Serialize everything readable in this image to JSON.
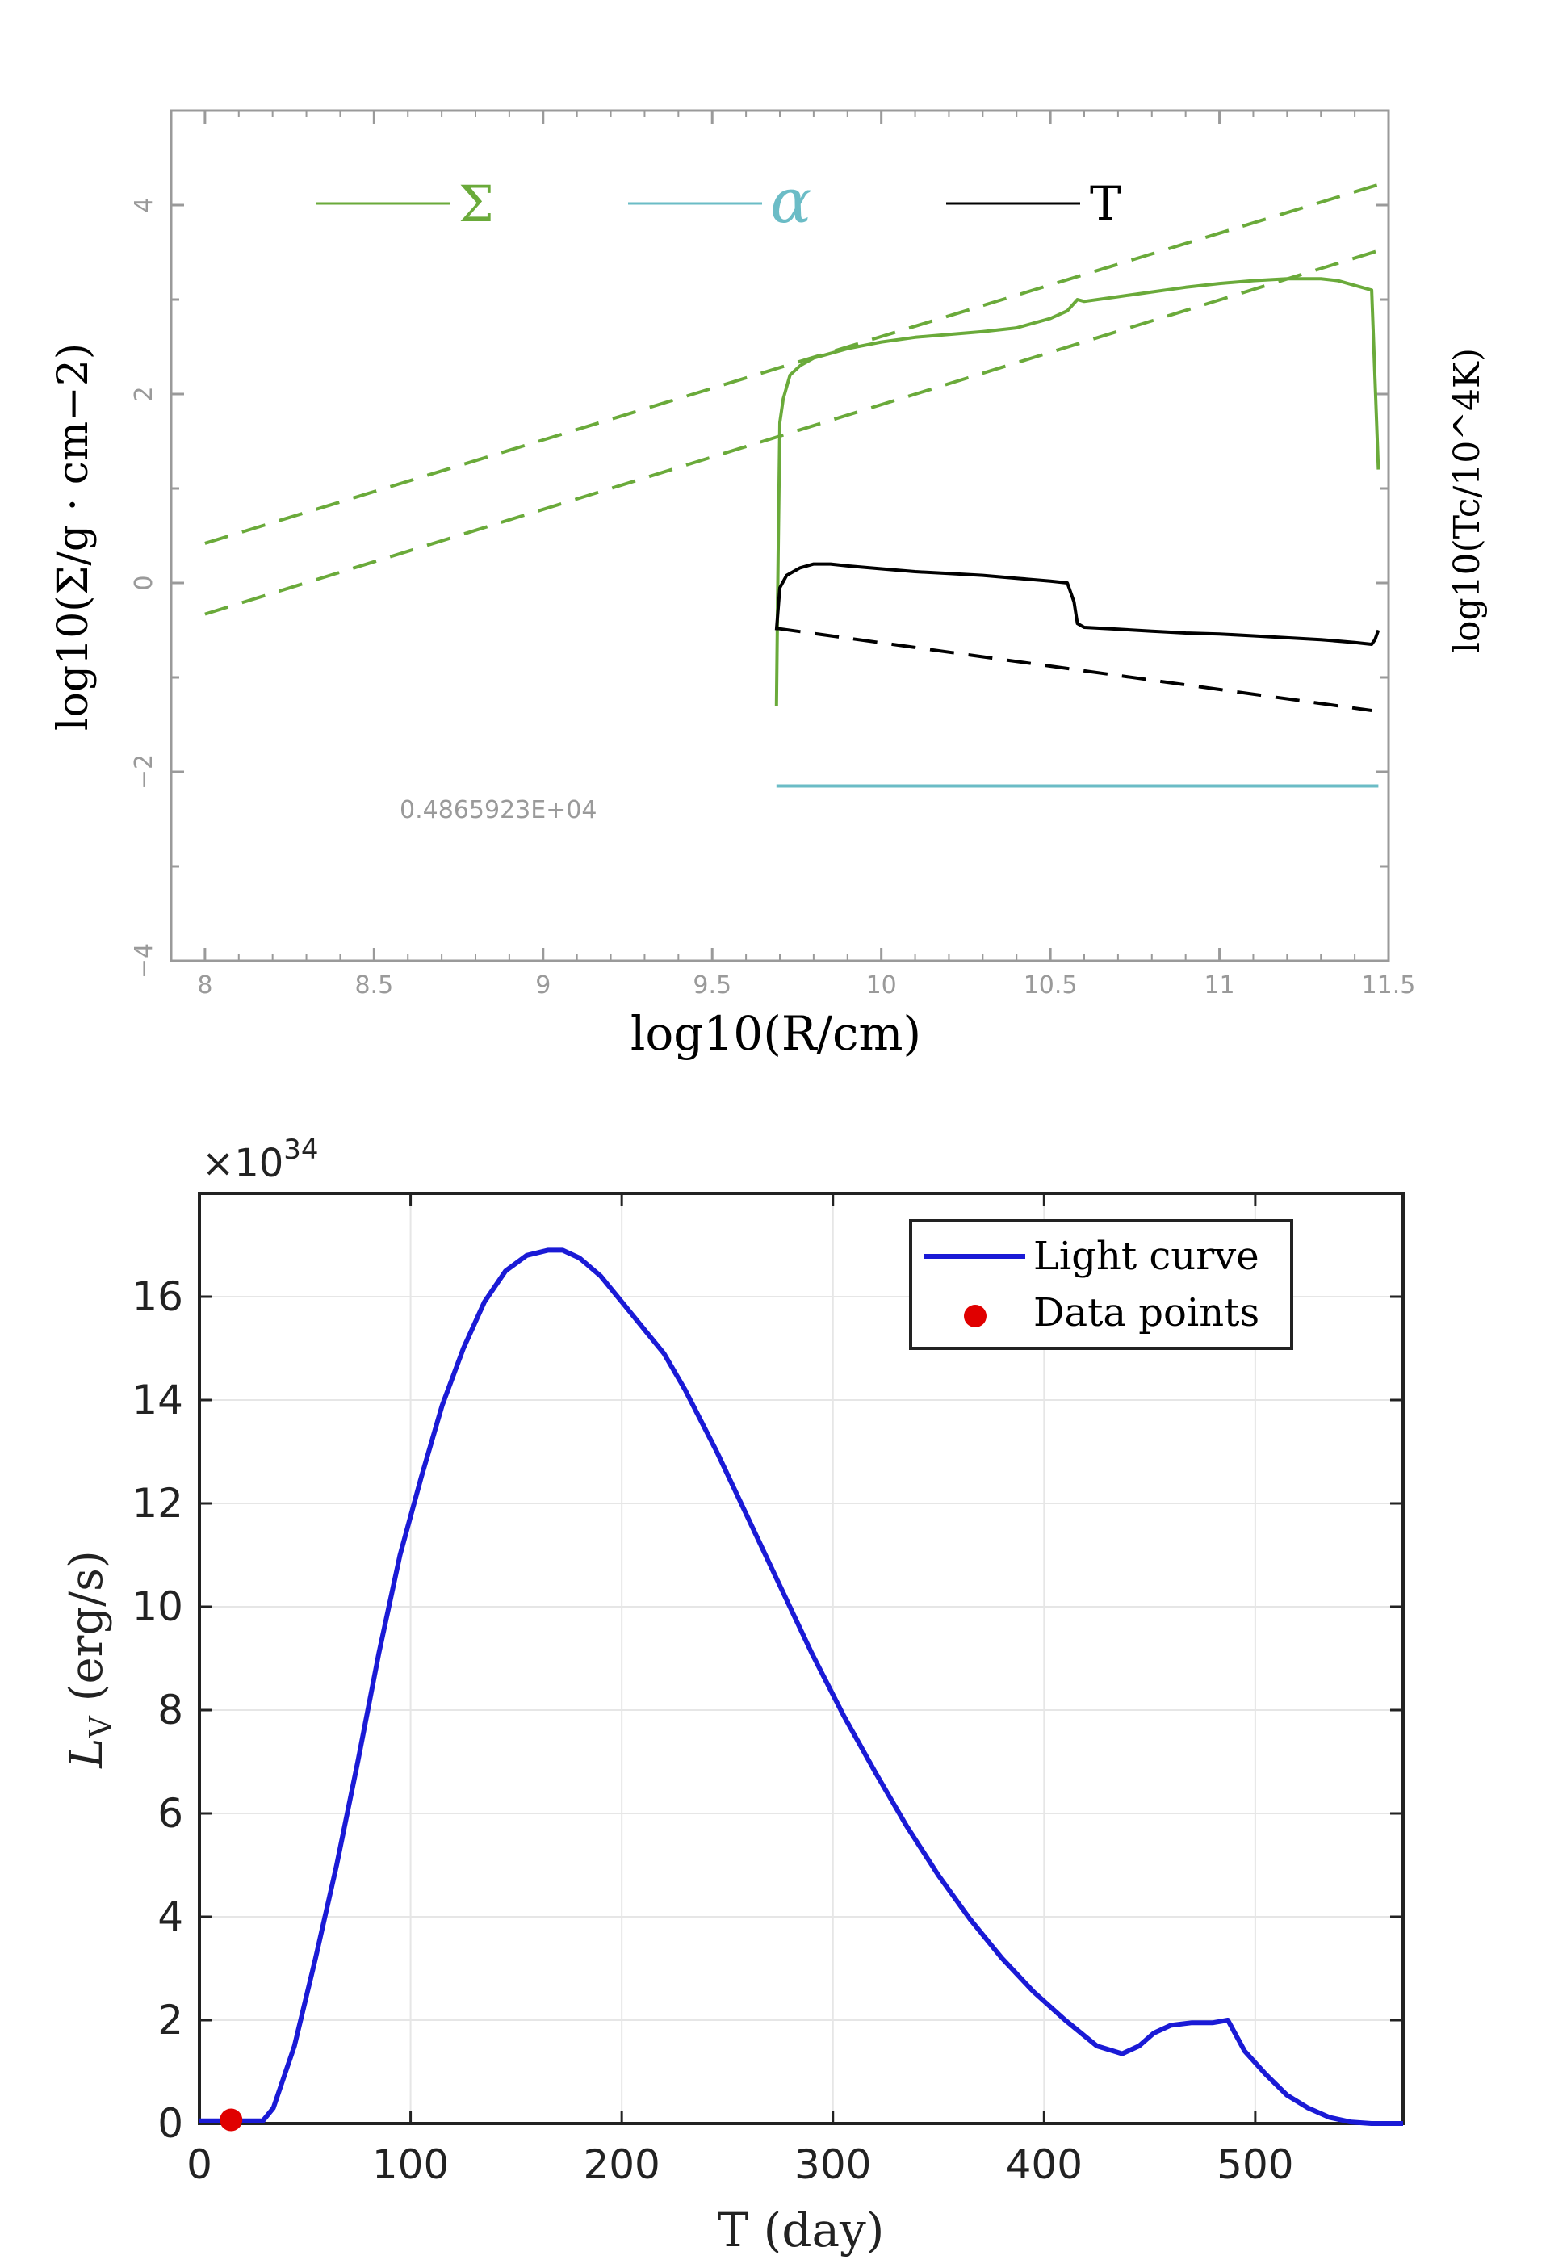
{
  "chart_data": [
    {
      "type": "line",
      "title": "",
      "xlabel": "log10(R/cm)",
      "ylabel_left": "log10(Σ/g · cm−2)",
      "ylabel_right": "log10(Tc/10^4K)",
      "xlim": [
        7.9,
        11.5
      ],
      "ylim": [
        -4,
        5
      ],
      "x_ticks": [
        8,
        8.5,
        9,
        9.5,
        10,
        10.5,
        11,
        11.5
      ],
      "x_tick_labels": [
        "8",
        "8.5",
        "9",
        "9.5",
        "10",
        "10.5",
        "11",
        "11.5"
      ],
      "y_ticks": [
        -4,
        -2,
        0,
        2,
        4
      ],
      "y_tick_labels": [
        "−4",
        "−2",
        "0",
        "2",
        "4"
      ],
      "annotation": "0.4865923E+04",
      "legend": [
        {
          "label": "Σ",
          "color": "#6aaa3a"
        },
        {
          "label": "α",
          "color": "#6bbcc6"
        },
        {
          "label": "T",
          "color": "#000000"
        }
      ],
      "series": [
        {
          "name": "Σ",
          "color": "#6aaa3a",
          "style": "solid",
          "x": [
            9.69,
            9.695,
            9.7,
            9.71,
            9.73,
            9.76,
            9.8,
            9.9,
            10.0,
            10.1,
            10.2,
            10.3,
            10.4,
            10.5,
            10.55,
            10.58,
            10.6,
            10.7,
            10.8,
            10.9,
            11.0,
            11.1,
            11.2,
            11.3,
            11.35,
            11.4,
            11.45,
            11.47
          ],
          "y": [
            -1.3,
            0.3,
            1.7,
            1.95,
            2.2,
            2.3,
            2.38,
            2.48,
            2.55,
            2.6,
            2.63,
            2.66,
            2.7,
            2.8,
            2.88,
            3.0,
            2.98,
            3.03,
            3.08,
            3.13,
            3.17,
            3.2,
            3.22,
            3.22,
            3.2,
            3.15,
            3.1,
            1.2
          ]
        },
        {
          "name": "Σ upper limit",
          "color": "#6aaa3a",
          "style": "dashed",
          "x": [
            8.0,
            11.5
          ],
          "y": [
            0.42,
            4.25
          ]
        },
        {
          "name": "Σ lower limit",
          "color": "#6aaa3a",
          "style": "dashed",
          "x": [
            8.0,
            11.5
          ],
          "y": [
            -0.33,
            3.55
          ]
        },
        {
          "name": "T",
          "color": "#000000",
          "style": "solid",
          "x": [
            9.69,
            9.7,
            9.72,
            9.76,
            9.8,
            9.85,
            9.9,
            10.0,
            10.1,
            10.2,
            10.3,
            10.4,
            10.5,
            10.55,
            10.57,
            10.58,
            10.6,
            10.7,
            10.8,
            10.9,
            11.0,
            11.1,
            11.2,
            11.3,
            11.4,
            11.45,
            11.46,
            11.47
          ],
          "y": [
            -0.5,
            -0.05,
            0.08,
            0.16,
            0.2,
            0.2,
            0.18,
            0.15,
            0.12,
            0.1,
            0.08,
            0.05,
            0.02,
            0.0,
            -0.2,
            -0.43,
            -0.47,
            -0.49,
            -0.51,
            -0.53,
            -0.54,
            -0.56,
            -0.58,
            -0.6,
            -0.63,
            -0.65,
            -0.6,
            -0.5
          ]
        },
        {
          "name": "T reference",
          "color": "#000000",
          "style": "dashed",
          "x": [
            9.69,
            11.45
          ],
          "y": [
            -0.48,
            -1.35
          ]
        },
        {
          "name": "α",
          "color": "#6bbcc6",
          "style": "solid",
          "x": [
            9.69,
            11.47
          ],
          "y": [
            -2.15,
            -2.15
          ]
        }
      ]
    },
    {
      "type": "line",
      "title": "",
      "xlabel": "T (day)",
      "ylabel": "LV (erg/s)",
      "y_multiplier": "×10^34",
      "xlim": [
        0,
        570
      ],
      "ylim": [
        0,
        18
      ],
      "x_ticks": [
        0,
        100,
        200,
        300,
        400,
        500
      ],
      "x_tick_labels": [
        "0",
        "100",
        "200",
        "300",
        "400",
        "500"
      ],
      "y_ticks": [
        0,
        2,
        4,
        6,
        8,
        10,
        12,
        14,
        16
      ],
      "y_tick_labels": [
        "0",
        "2",
        "4",
        "6",
        "8",
        "10",
        "12",
        "14",
        "16"
      ],
      "legend_position": "top-right",
      "series": [
        {
          "name": "Light curve",
          "color": "#1a1ad6",
          "x": [
            0,
            30,
            35,
            45,
            55,
            65,
            75,
            85,
            95,
            105,
            115,
            125,
            135,
            145,
            155,
            165,
            172,
            180,
            190,
            200,
            210,
            220,
            230,
            245,
            260,
            275,
            290,
            305,
            320,
            335,
            350,
            365,
            380,
            395,
            410,
            425,
            437,
            445,
            452,
            460,
            470,
            480,
            487,
            495,
            505,
            515,
            525,
            535,
            545,
            555,
            570
          ],
          "y": [
            0.05,
            0.05,
            0.3,
            1.5,
            3.2,
            5.0,
            7.0,
            9.1,
            11.0,
            12.5,
            13.9,
            15.0,
            15.9,
            16.5,
            16.8,
            16.9,
            16.9,
            16.75,
            16.4,
            15.9,
            15.4,
            14.9,
            14.2,
            13.0,
            11.7,
            10.4,
            9.1,
            7.9,
            6.8,
            5.75,
            4.8,
            3.95,
            3.2,
            2.55,
            2.0,
            1.5,
            1.35,
            1.5,
            1.75,
            1.9,
            1.95,
            1.95,
            2.0,
            1.4,
            0.95,
            0.55,
            0.3,
            0.12,
            0.03,
            0.0,
            0.0
          ]
        },
        {
          "name": "Data points",
          "color": "#e00000",
          "marker": "circle",
          "x": [
            15
          ],
          "y": [
            0.07
          ]
        }
      ]
    }
  ]
}
